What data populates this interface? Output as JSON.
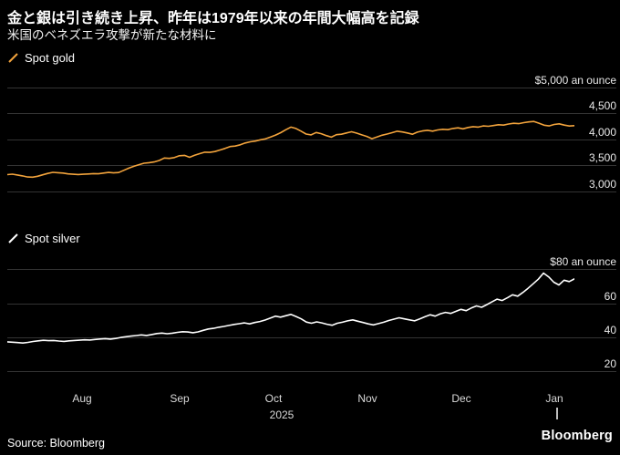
{
  "header": {
    "title": "金と銀は引き続き上昇、昨年は1979年以来の年間大幅高を記録",
    "subtitle": "米国のベネズエラ攻撃が新たな材料に"
  },
  "footer": {
    "source": "Source: Bloomberg",
    "logo": "Bloomberg"
  },
  "colors": {
    "background": "#000000",
    "grid": "#333333",
    "gold": "#f2a33c",
    "silver": "#ffffff",
    "text": "#ffffff",
    "muted": "#d9d9d9"
  },
  "x_axis": {
    "months": [
      {
        "label": "Aug",
        "pos": 0.132
      },
      {
        "label": "Sep",
        "pos": 0.304
      },
      {
        "label": "Oct",
        "pos": 0.47
      },
      {
        "label": "Nov",
        "pos": 0.635
      },
      {
        "label": "Dec",
        "pos": 0.801
      },
      {
        "label": "Jan",
        "pos": 0.965
      }
    ],
    "year": {
      "label": "2025",
      "pos": 0.484
    },
    "year_tick_pos": 0.968
  },
  "chart_data": [
    {
      "type": "line",
      "name": "Spot gold",
      "legend": "Spot gold",
      "color": "#f2a33c",
      "ylabel": "$ an ounce",
      "ylim": [
        2850,
        5100
      ],
      "grid": true,
      "legend_position": "top-left",
      "gridlines": [
        {
          "value": 5000,
          "label": "$5,000 an ounce"
        },
        {
          "value": 4500,
          "label": "4,500"
        },
        {
          "value": 4000,
          "label": "4,000"
        },
        {
          "value": 3500,
          "label": "3,500"
        },
        {
          "value": 3000,
          "label": "3,000"
        }
      ],
      "values": [
        3315,
        3325,
        3308,
        3292,
        3270,
        3266,
        3284,
        3312,
        3338,
        3360,
        3352,
        3345,
        3330,
        3322,
        3318,
        3322,
        3328,
        3336,
        3332,
        3345,
        3358,
        3350,
        3356,
        3398,
        3440,
        3476,
        3508,
        3535,
        3546,
        3560,
        3588,
        3635,
        3628,
        3645,
        3680,
        3686,
        3650,
        3688,
        3720,
        3748,
        3744,
        3760,
        3790,
        3820,
        3858,
        3866,
        3890,
        3925,
        3948,
        3962,
        3988,
        4005,
        4042,
        4078,
        4125,
        4180,
        4232,
        4205,
        4155,
        4098,
        4082,
        4128,
        4105,
        4068,
        4038,
        4085,
        4095,
        4120,
        4142,
        4115,
        4082,
        4052,
        4008,
        4042,
        4075,
        4098,
        4125,
        4152,
        4138,
        4120,
        4095,
        4135,
        4158,
        4170,
        4155,
        4178,
        4190,
        4182,
        4205,
        4218,
        4198,
        4225,
        4240,
        4232,
        4255,
        4248,
        4262,
        4278,
        4270,
        4292,
        4305,
        4298,
        4318,
        4332,
        4340,
        4308,
        4268,
        4255,
        4282,
        4295,
        4270,
        4252,
        4260
      ]
    },
    {
      "type": "line",
      "name": "Spot silver",
      "legend": "Spot silver",
      "color": "#ffffff",
      "ylabel": "$ an ounce",
      "ylim": [
        14,
        84
      ],
      "grid": true,
      "legend_position": "top-left",
      "gridlines": [
        {
          "value": 80,
          "label": "$80 an ounce"
        },
        {
          "value": 60,
          "label": "60"
        },
        {
          "value": 40,
          "label": "40"
        },
        {
          "value": 20,
          "label": "20"
        }
      ],
      "values": [
        37.2,
        37.0,
        36.8,
        36.5,
        36.9,
        37.4,
        37.8,
        38.1,
        37.9,
        38.0,
        37.7,
        37.5,
        37.8,
        38.0,
        38.2,
        38.4,
        38.3,
        38.6,
        38.9,
        39.1,
        38.8,
        39.2,
        39.8,
        40.2,
        40.6,
        40.9,
        41.3,
        41.0,
        41.5,
        42.1,
        42.4,
        42.0,
        42.3,
        42.8,
        43.2,
        43.0,
        42.6,
        43.1,
        44.0,
        44.8,
        45.2,
        45.8,
        46.3,
        46.9,
        47.5,
        47.9,
        48.4,
        47.8,
        48.6,
        49.2,
        50.1,
        51.2,
        52.4,
        51.8,
        52.6,
        53.4,
        52.2,
        50.8,
        48.9,
        48.2,
        49.0,
        48.4,
        47.6,
        47.0,
        48.2,
        48.8,
        49.6,
        50.2,
        49.4,
        48.6,
        47.8,
        47.2,
        48.0,
        48.8,
        49.8,
        50.6,
        51.4,
        50.8,
        50.2,
        49.6,
        50.8,
        52.0,
        53.2,
        52.4,
        53.8,
        54.6,
        54.0,
        55.2,
        56.4,
        55.6,
        57.2,
        58.4,
        57.6,
        59.2,
        60.8,
        62.4,
        61.6,
        63.2,
        65.0,
        64.2,
        66.4,
        68.8,
        71.5,
        74.2,
        77.8,
        75.6,
        72.4,
        70.8,
        73.6,
        72.8,
        74.4
      ]
    }
  ]
}
